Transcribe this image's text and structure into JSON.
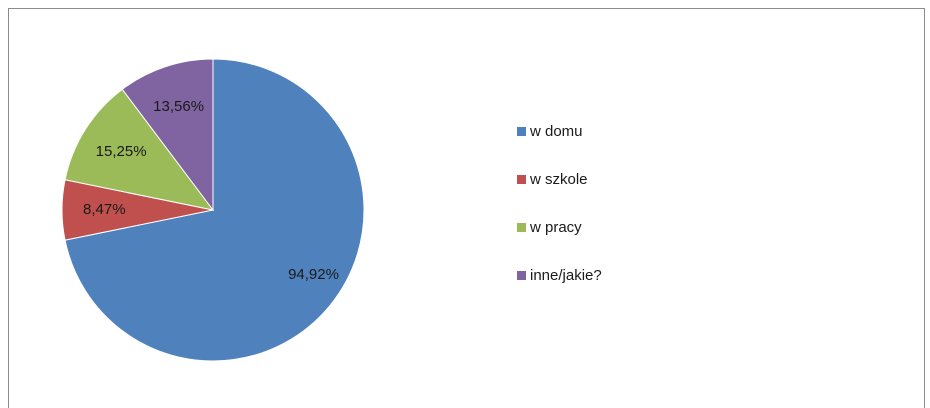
{
  "chart_data": {
    "type": "pie",
    "categories": [
      "w domu",
      "w szkole",
      "w pracy",
      "inne/jakie?"
    ],
    "values": [
      94.92,
      8.47,
      15.25,
      13.56
    ],
    "labels": [
      "94,92%",
      "8,47%",
      "15,25%",
      "13,56%"
    ],
    "colors": [
      "#4f81bd",
      "#c0504d",
      "#9bbb59",
      "#8064a2"
    ],
    "legend_position": "right",
    "start_angle": "12 o'clock, clockwise"
  }
}
